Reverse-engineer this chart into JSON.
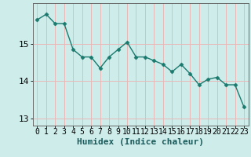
{
  "x": [
    0,
    1,
    2,
    3,
    4,
    5,
    6,
    7,
    8,
    9,
    10,
    11,
    12,
    13,
    14,
    15,
    16,
    17,
    18,
    19,
    20,
    21,
    22,
    23
  ],
  "y": [
    15.65,
    15.8,
    15.55,
    15.55,
    14.85,
    14.65,
    14.65,
    14.35,
    14.65,
    14.85,
    15.05,
    14.65,
    14.65,
    14.55,
    14.45,
    14.25,
    14.45,
    14.2,
    13.9,
    14.05,
    14.1,
    13.9,
    13.9,
    13.3
  ],
  "line_color": "#1a7a6e",
  "marker": "D",
  "marker_size": 2.5,
  "bg_color": "#ceecea",
  "grid_color": "#e8b8b8",
  "axis_color": "#666666",
  "xlabel": "Humidex (Indice chaleur)",
  "xlabel_fontsize": 8,
  "tick_fontsize": 7,
  "ylim": [
    12.8,
    16.1
  ],
  "xlim": [
    -0.5,
    23.5
  ],
  "yticks": [
    13,
    14,
    15
  ],
  "xticks": [
    0,
    1,
    2,
    3,
    4,
    5,
    6,
    7,
    8,
    9,
    10,
    11,
    12,
    13,
    14,
    15,
    16,
    17,
    18,
    19,
    20,
    21,
    22,
    23
  ],
  "linewidth": 1.0
}
